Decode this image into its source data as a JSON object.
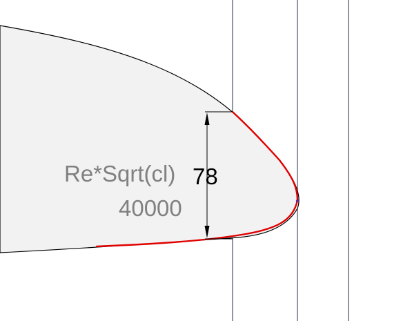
{
  "labels": {
    "name": "Re*Sqrt(cl)",
    "value": "40000",
    "dimension": "78"
  },
  "colors": {
    "background": "#ffffff",
    "profile_fill": "#f2f2f2",
    "profile_outline": "#000000",
    "highlight_curve": "#e00000",
    "guide_lines": "#2a2a44",
    "dimension_lines": "#000000",
    "label_text": "#808080",
    "value_text": "#000000",
    "tip_marker": "#6a2a8a"
  }
}
